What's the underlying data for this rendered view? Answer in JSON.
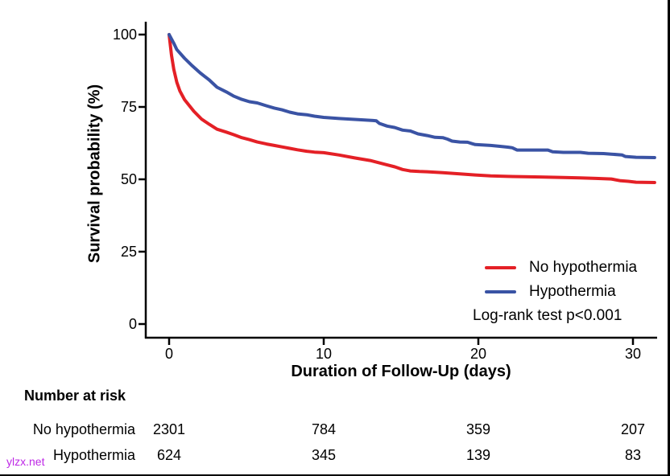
{
  "watermark": {
    "text": "ylzx.net",
    "color": "#be28e6"
  },
  "chart_data": {
    "type": "line",
    "subtype": "kaplan-meier-survival",
    "title": "",
    "xlabel": "Duration of Follow-Up (days)",
    "ylabel": "Survival probability (%)",
    "xlim": [
      0,
      31.5
    ],
    "ylim": [
      0,
      100
    ],
    "xticks": [
      0,
      10,
      20,
      30
    ],
    "yticks": [
      100,
      75,
      50,
      25,
      0
    ],
    "grid": false,
    "legend_position": "inside-bottom-right",
    "annotation": "Log-rank test p<0.001",
    "series": [
      {
        "name": "No hypothermia",
        "color": "#e42026",
        "points": [
          [
            0,
            100
          ],
          [
            0.15,
            93
          ],
          [
            0.3,
            88
          ],
          [
            0.5,
            83.5
          ],
          [
            0.7,
            80.5
          ],
          [
            1,
            77.5
          ],
          [
            1.3,
            75.5
          ],
          [
            1.6,
            73.5
          ],
          [
            2.1,
            70.8
          ],
          [
            2.6,
            69
          ],
          [
            3.1,
            67.3
          ],
          [
            3.7,
            66.3
          ],
          [
            4.2,
            65.4
          ],
          [
            4.7,
            64.4
          ],
          [
            5.2,
            63.7
          ],
          [
            5.7,
            62.9
          ],
          [
            6.3,
            62.2
          ],
          [
            6.8,
            61.7
          ],
          [
            7.3,
            61.2
          ],
          [
            7.8,
            60.7
          ],
          [
            8.3,
            60.2
          ],
          [
            8.9,
            59.7
          ],
          [
            9.4,
            59.4
          ],
          [
            10,
            59.2
          ],
          [
            11,
            58.4
          ],
          [
            12,
            57.4
          ],
          [
            13,
            56.5
          ],
          [
            14,
            55.1
          ],
          [
            14.6,
            54.3
          ],
          [
            15.1,
            53.4
          ],
          [
            15.6,
            52.9
          ],
          [
            16.2,
            52.7
          ],
          [
            16.7,
            52.6
          ],
          [
            17.7,
            52.3
          ],
          [
            18.8,
            51.9
          ],
          [
            19.8,
            51.5
          ],
          [
            20.8,
            51.2
          ],
          [
            21.9,
            51
          ],
          [
            22.9,
            50.9
          ],
          [
            24,
            50.8
          ],
          [
            25.5,
            50.6
          ],
          [
            26.6,
            50.5
          ],
          [
            27.6,
            50.3
          ],
          [
            28.6,
            50.1
          ],
          [
            29.2,
            49.5
          ],
          [
            29.7,
            49.3
          ],
          [
            30.2,
            49
          ],
          [
            31.4,
            48.9
          ]
        ]
      },
      {
        "name": "Hypothermia",
        "color": "#3a53a4",
        "points": [
          [
            0,
            100
          ],
          [
            0.3,
            97
          ],
          [
            0.5,
            94.8
          ],
          [
            1,
            91.8
          ],
          [
            1.5,
            89.2
          ],
          [
            2,
            86.8
          ],
          [
            2.6,
            84.3
          ],
          [
            3.1,
            81.8
          ],
          [
            3.7,
            80.2
          ],
          [
            4.2,
            78.7
          ],
          [
            4.7,
            77.6
          ],
          [
            5.2,
            76.8
          ],
          [
            5.7,
            76.4
          ],
          [
            6.3,
            75.4
          ],
          [
            6.8,
            74.6
          ],
          [
            7.3,
            74
          ],
          [
            7.8,
            73.2
          ],
          [
            8.3,
            72.6
          ],
          [
            8.9,
            72.3
          ],
          [
            9.4,
            71.8
          ],
          [
            10,
            71.4
          ],
          [
            11,
            71
          ],
          [
            12,
            70.7
          ],
          [
            13.2,
            70.3
          ],
          [
            13.4,
            70.2
          ],
          [
            13.6,
            69.3
          ],
          [
            14.1,
            68.4
          ],
          [
            14.6,
            67.9
          ],
          [
            15.1,
            67
          ],
          [
            15.6,
            66.7
          ],
          [
            16.1,
            65.7
          ],
          [
            16.7,
            65.1
          ],
          [
            17.2,
            64.5
          ],
          [
            17.7,
            64.4
          ],
          [
            18,
            63.9
          ],
          [
            18.3,
            63.2
          ],
          [
            18.8,
            62.9
          ],
          [
            19.3,
            62.8
          ],
          [
            19.6,
            62.3
          ],
          [
            19.8,
            62
          ],
          [
            20.8,
            61.7
          ],
          [
            21.4,
            61.4
          ],
          [
            21.9,
            61.1
          ],
          [
            22.2,
            60.9
          ],
          [
            22.5,
            60.1
          ],
          [
            24.5,
            60.1
          ],
          [
            24.8,
            59.5
          ],
          [
            25.5,
            59.3
          ],
          [
            26.6,
            59.3
          ],
          [
            27.1,
            59
          ],
          [
            28.1,
            58.9
          ],
          [
            28.6,
            58.7
          ],
          [
            29.3,
            58.4
          ],
          [
            29.5,
            57.9
          ],
          [
            30.2,
            57.6
          ],
          [
            31.4,
            57.5
          ]
        ]
      }
    ],
    "risk_table": {
      "title": "Number at risk",
      "time_points": [
        0,
        10,
        20,
        30
      ],
      "rows": [
        {
          "label": "No hypothermia",
          "values": [
            2301,
            784,
            359,
            207
          ]
        },
        {
          "label": "Hypothermia",
          "values": [
            624,
            345,
            139,
            83
          ]
        }
      ]
    }
  }
}
